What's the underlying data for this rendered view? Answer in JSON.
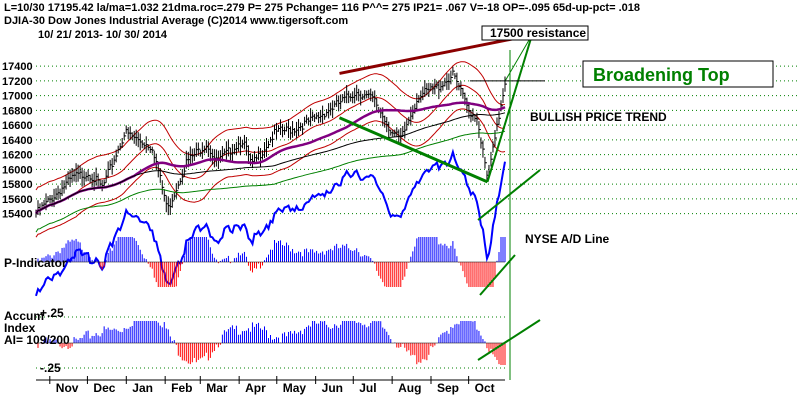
{
  "header": {
    "line1": "L=10/30  17195.42  la/ma=1.032 21dma.roc=.279 P=  275 Pchange=  116 P^^= 275 IP21= .067 V=-18 OP=-.095 65d-up-pct= .018",
    "line2": "DJIA-30   Dow Jones Industrial Average   (C)2014 www.tigersoft.com",
    "line3": "10/ 21/ 2013- 10/ 30/ 2014"
  },
  "annotations": {
    "resistance": "17500 resistance",
    "broadening_top": "Broadening Top",
    "bullish_trend": "BULLISH PRICE TREND",
    "ad_line": "NYSE A/D Line"
  },
  "indicator_labels": {
    "p_indicator": "P-Indicator",
    "accum_1": "Accum",
    "accum_2": "Index",
    "accum_3": "AI= 109/200",
    "accum_plus": "+.25",
    "accum_minus": "-.25"
  },
  "colors": {
    "price_bars": "#000000",
    "ma_purple": "#800080",
    "band_red": "#c00000",
    "ad_blue": "#0000ff",
    "trend_green": "#008000",
    "resistance_red": "#8b0000",
    "pos_bars": "#0000ff",
    "neg_bars": "#ff0000",
    "grid_green": "#008000"
  },
  "chart_data": {
    "type": "line",
    "title": "DJIA-30 Dow Jones Industrial Average",
    "date_range": "10/ 21/ 2013- 10/ 30/ 2014",
    "last_close": 17195.42,
    "y_ticks": [
      15400,
      15600,
      15800,
      16000,
      16200,
      16400,
      16600,
      16800,
      17000,
      17200,
      17400
    ],
    "ylim": [
      15300,
      17550
    ],
    "months": [
      "Nov",
      "Dec",
      "Jan",
      "Feb",
      "Mar",
      "Apr",
      "May",
      "Jun",
      "Jul",
      "Aug",
      "Sep",
      "Oct"
    ],
    "series": [
      {
        "name": "DJIA",
        "dates": [
          "2013-10-21",
          "2013-11-05",
          "2013-11-20",
          "2013-12-02",
          "2013-12-13",
          "2013-12-31",
          "2014-01-10",
          "2014-01-22",
          "2014-02-03",
          "2014-02-18",
          "2014-03-06",
          "2014-03-14",
          "2014-04-04",
          "2014-04-11",
          "2014-04-30",
          "2014-05-15",
          "2014-06-02",
          "2014-06-20",
          "2014-07-03",
          "2014-07-17",
          "2014-08-01",
          "2014-08-08",
          "2014-08-22",
          "2014-09-05",
          "2014-09-19",
          "2014-10-01",
          "2014-10-08",
          "2014-10-16",
          "2014-10-22",
          "2014-10-30"
        ],
        "values": [
          15400,
          15650,
          15900,
          15950,
          15750,
          16500,
          16400,
          16300,
          15450,
          16100,
          16350,
          16100,
          16400,
          16050,
          16500,
          16550,
          16700,
          16900,
          17050,
          16950,
          16500,
          16400,
          17000,
          17100,
          17280,
          16800,
          16700,
          15850,
          16400,
          17195
        ]
      }
    ],
    "resistance_level": 17500
  }
}
